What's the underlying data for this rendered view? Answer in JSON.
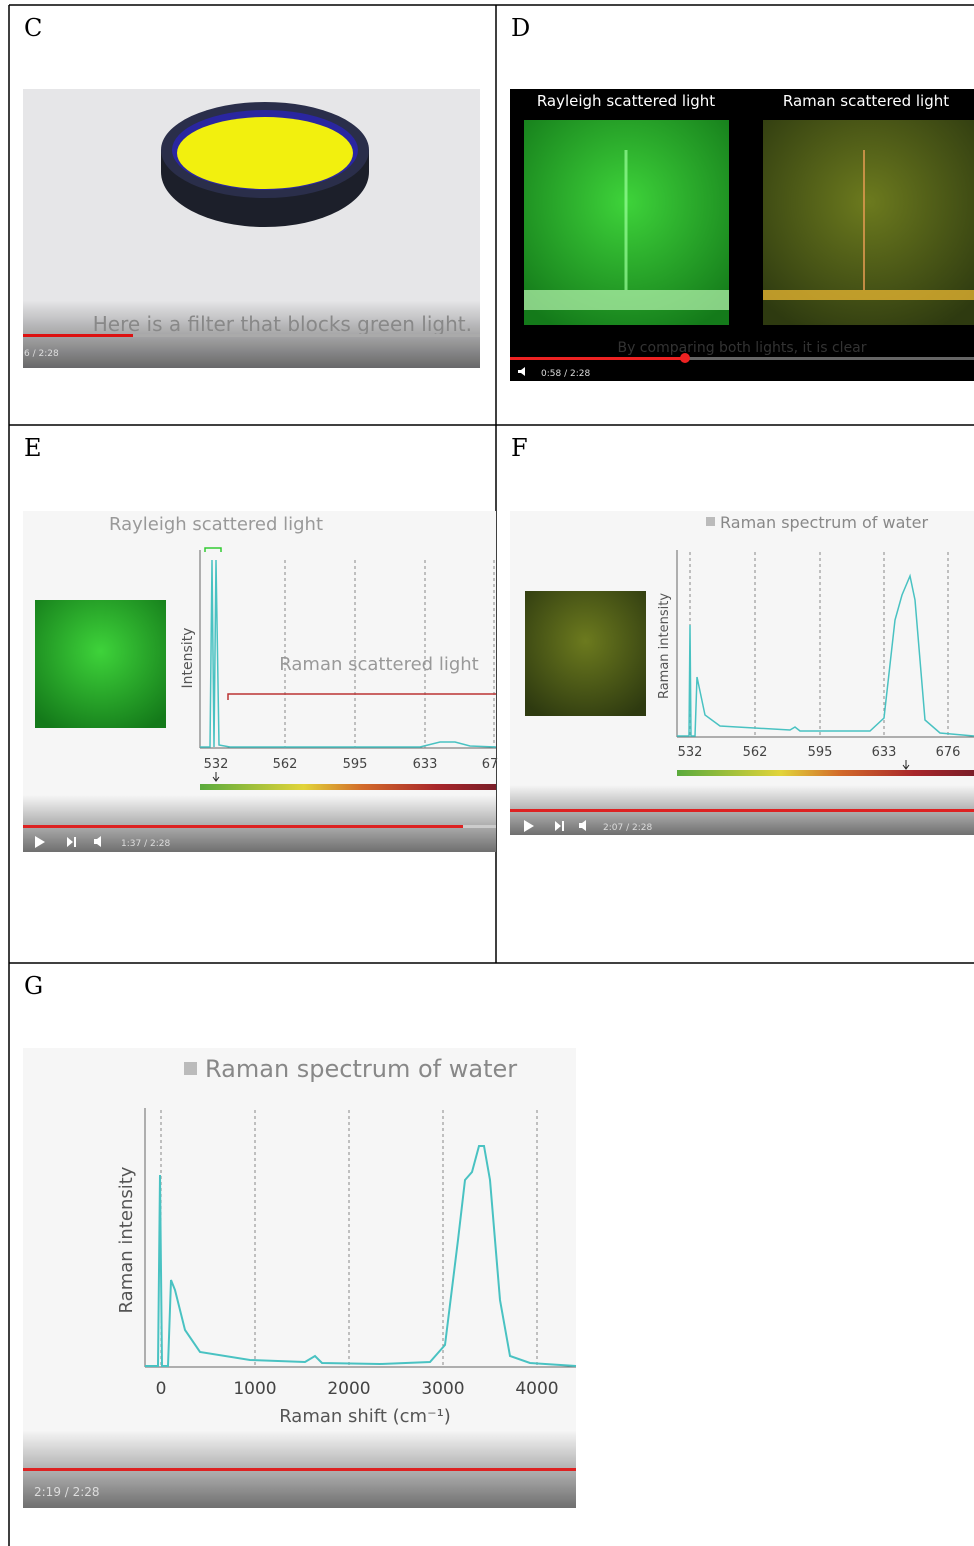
{
  "panels": {
    "c": {
      "label": "C",
      "caption": "Here is a filter that blocks green light.",
      "time": "6 / 2:28"
    },
    "d": {
      "label": "D",
      "left_title": "Rayleigh scattered light",
      "right_title": "Raman scattered light",
      "caption": "By comparing both lights, it is clear",
      "time": "0:58 / 2:28"
    },
    "e": {
      "label": "E",
      "rayleigh": "Rayleigh scattered light",
      "raman": "Raman scattered light",
      "y_label": "Intensity",
      "ticks": [
        "532",
        "562",
        "595",
        "633",
        "67"
      ],
      "time": "1:37 / 2:28"
    },
    "f": {
      "label": "F",
      "title": "Raman spectrum of water",
      "y_label": "Raman intensity",
      "ticks": [
        "532",
        "562",
        "595",
        "633",
        "676"
      ],
      "time": "2:07 / 2:28"
    },
    "g": {
      "label": "G",
      "title": "Raman spectrum of water",
      "y_label": "Raman intensity",
      "x_label": "Raman shift (cm⁻¹)",
      "ticks": [
        "0",
        "1000",
        "2000",
        "3000",
        "4000"
      ],
      "time": "2:19 / 2:28"
    }
  }
}
